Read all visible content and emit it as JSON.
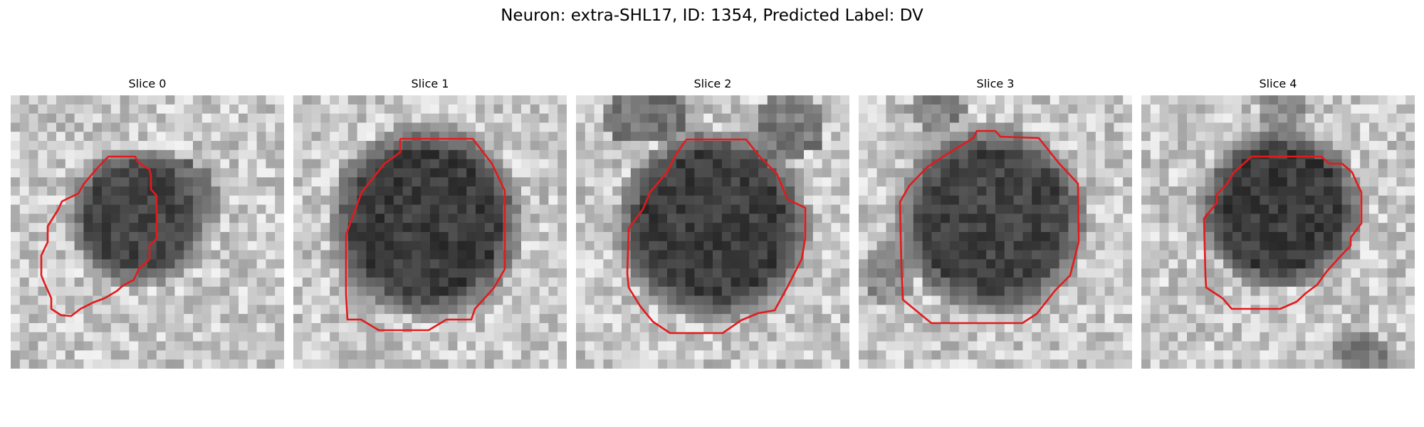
{
  "figure": {
    "title": "Neuron: extra-SHL17, ID: 1354, Predicted Label: DV"
  },
  "panels": [
    {
      "title": "Slice 0"
    },
    {
      "title": "Slice 1"
    },
    {
      "title": "Slice 2"
    },
    {
      "title": "Slice 3"
    },
    {
      "title": "Slice 4"
    }
  ],
  "colors": {
    "contour": "#e31a1c",
    "background": "#ffffff"
  }
}
